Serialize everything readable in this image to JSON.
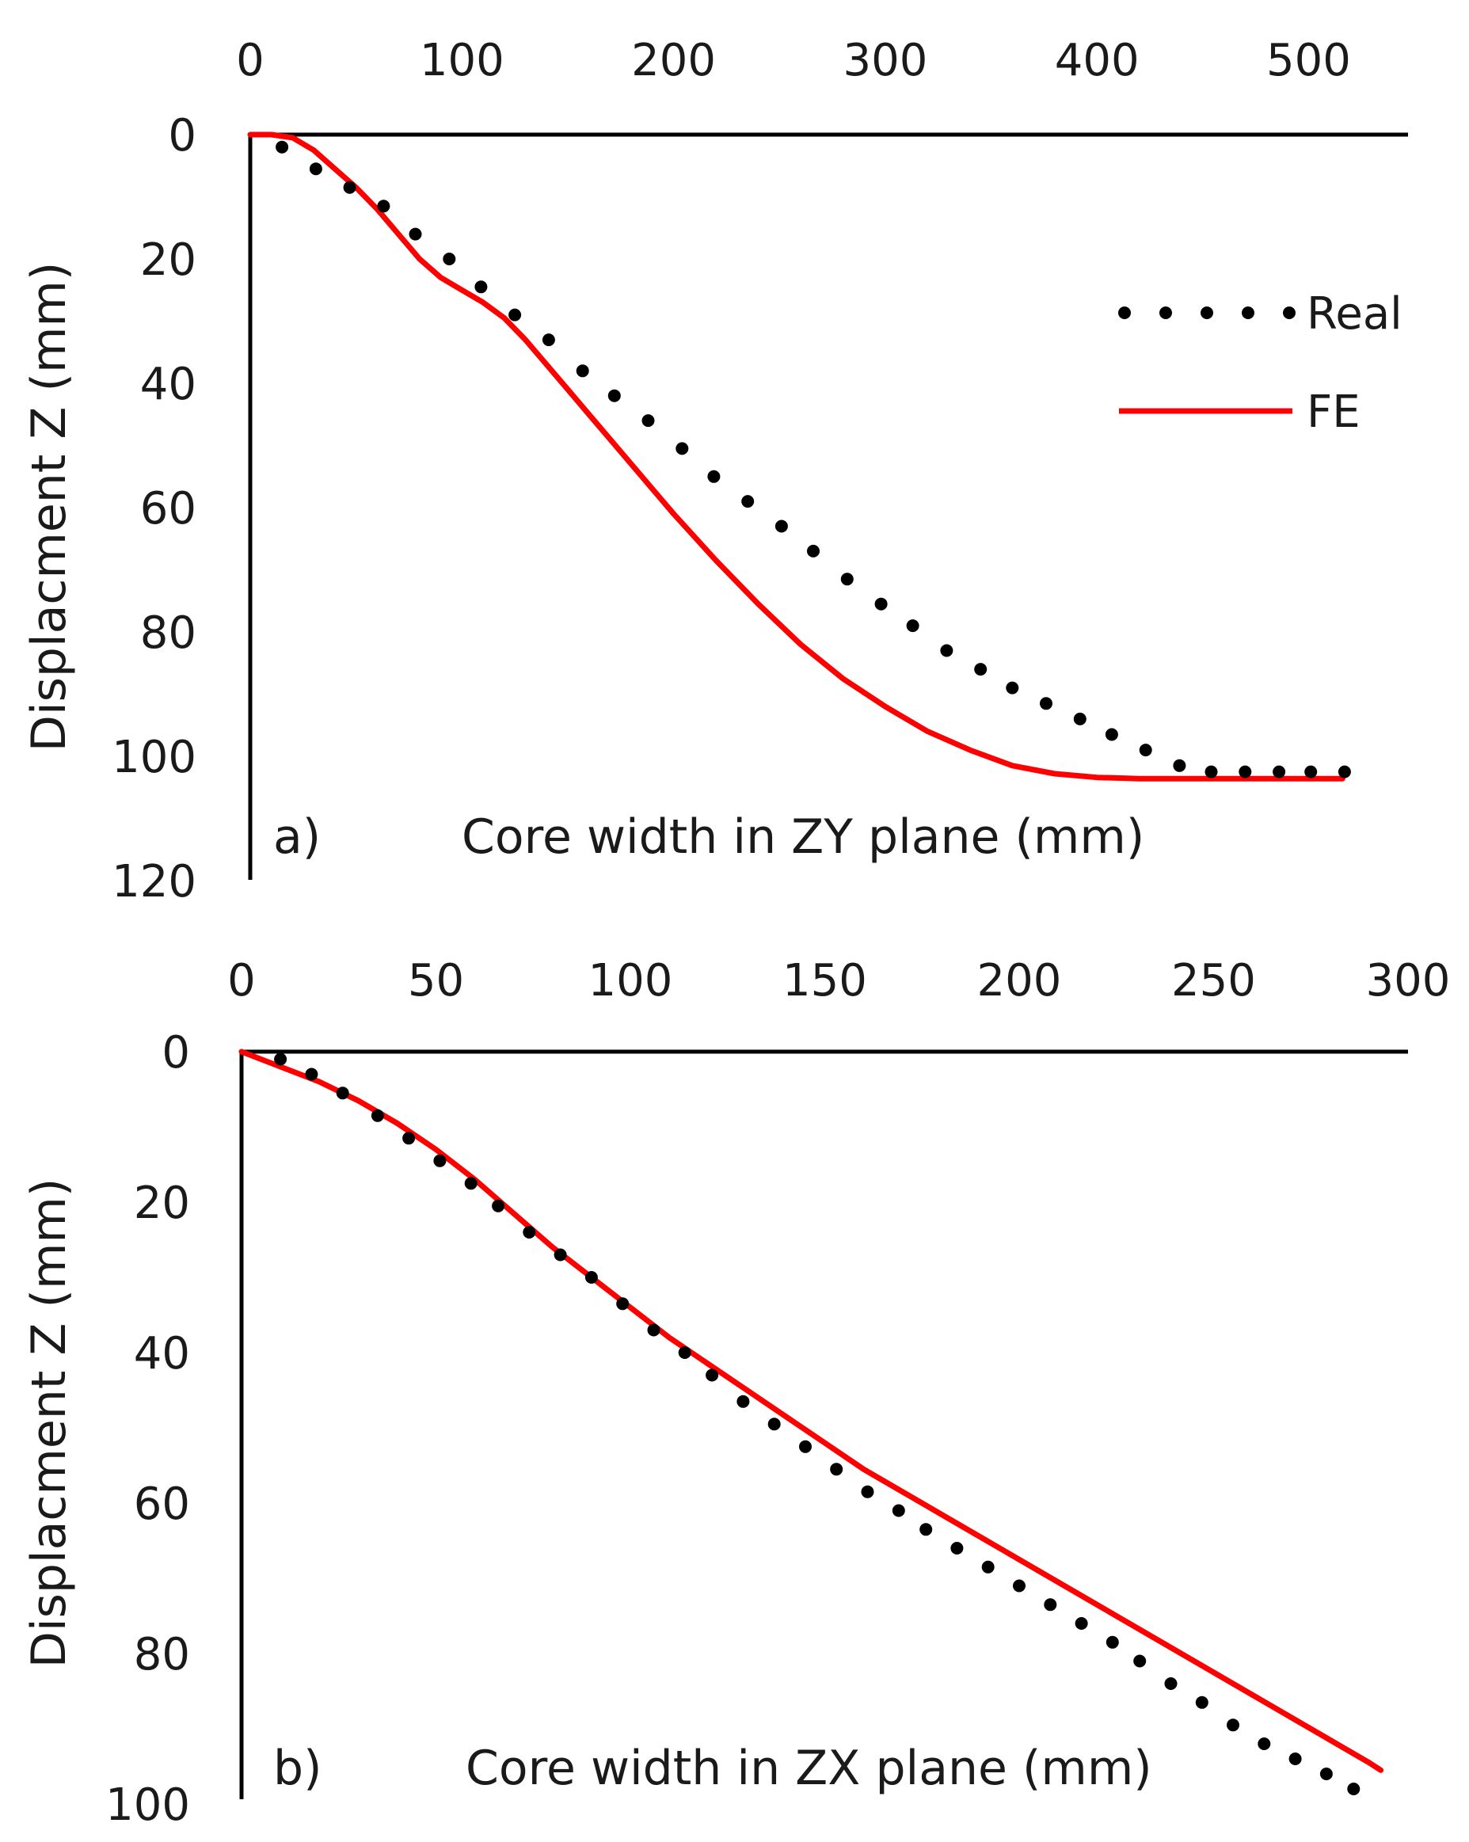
{
  "chart_data": [
    {
      "type": "line",
      "panel_label": "a)",
      "xlabel": "Core width in ZY plane (mm)",
      "ylabel": "Displacment Z (mm)",
      "xlim": [
        0,
        550
      ],
      "ylim": [
        0,
        120
      ],
      "x_ticks": [
        "0",
        "100",
        "200",
        "300",
        "400",
        "500"
      ],
      "y_ticks": [
        "0",
        "20",
        "40",
        "60",
        "80",
        "100",
        "120"
      ],
      "y_inverted": true,
      "x_axis_position": "top",
      "legend": {
        "position": "top-right",
        "entries": [
          "Real",
          "FE"
        ]
      },
      "series": [
        {
          "name": "Real",
          "style": "dotted",
          "color": "#000000",
          "x": [
            15,
            31,
            47,
            63,
            78,
            94,
            109,
            125,
            141,
            157,
            172,
            188,
            204,
            219,
            235,
            251,
            266,
            282,
            298,
            313,
            329,
            345,
            360,
            376,
            392,
            407,
            423,
            439,
            454,
            470,
            486,
            501,
            517
          ],
          "y": [
            2,
            5.5,
            8.5,
            11.5,
            16,
            20,
            24.5,
            29,
            33,
            38,
            42,
            46,
            50.5,
            55,
            59,
            63,
            67,
            71.5,
            75.5,
            79,
            83,
            86,
            89,
            91.5,
            94,
            96.5,
            99,
            101.5,
            102.5,
            102.5,
            102.5,
            102.5,
            102.5
          ]
        },
        {
          "name": "FE",
          "style": "solid",
          "color": "#ff0000",
          "x": [
            0,
            10,
            20,
            30,
            40,
            50,
            60,
            70,
            80,
            90,
            100,
            110,
            120,
            130,
            140,
            150,
            160,
            170,
            180,
            190,
            200,
            220,
            240,
            260,
            280,
            300,
            320,
            340,
            360,
            380,
            400,
            420,
            440,
            460,
            480,
            500,
            516
          ],
          "y": [
            0,
            0,
            0.5,
            2.5,
            5.5,
            8.5,
            12,
            16,
            20,
            23,
            25,
            27,
            29.5,
            33,
            37,
            41,
            45,
            49,
            53,
            57,
            61,
            68.5,
            75.5,
            82,
            87.5,
            92,
            96,
            99,
            101.5,
            102.8,
            103.4,
            103.6,
            103.6,
            103.6,
            103.6,
            103.6,
            103.6
          ]
        }
      ]
    },
    {
      "type": "line",
      "panel_label": "b)",
      "xlabel": "Core width in ZX plane (mm)",
      "ylabel": "Displacment Z (mm)",
      "xlim": [
        0,
        300
      ],
      "ylim": [
        0,
        100
      ],
      "x_ticks": [
        "0",
        "50",
        "100",
        "150",
        "200",
        "250",
        "300"
      ],
      "y_ticks": [
        "0",
        "20",
        "40",
        "60",
        "80",
        "100"
      ],
      "y_inverted": true,
      "x_axis_position": "top",
      "series": [
        {
          "name": "Real",
          "style": "dotted",
          "color": "#000000",
          "x": [
            10,
            18,
            26,
            35,
            43,
            51,
            59,
            66,
            74,
            82,
            90,
            98,
            106,
            114,
            121,
            129,
            137,
            145,
            153,
            161,
            169,
            176,
            184,
            192,
            200,
            208,
            216,
            224,
            231,
            239,
            247,
            255,
            263,
            271,
            279,
            286
          ],
          "y": [
            1,
            3,
            5.5,
            8.5,
            11.5,
            14.5,
            17.5,
            20.5,
            24,
            27,
            30,
            33.5,
            37,
            40,
            43,
            46.5,
            49.5,
            52.5,
            55.5,
            58.5,
            61,
            63.5,
            66,
            68.5,
            71,
            73.5,
            76,
            78.5,
            81,
            84,
            86.5,
            89.5,
            92,
            94,
            96,
            98
          ]
        },
        {
          "name": "FE",
          "style": "solid",
          "color": "#ff0000",
          "x": [
            0,
            10,
            20,
            30,
            40,
            50,
            60,
            70,
            80,
            90,
            100,
            110,
            120,
            130,
            140,
            150,
            160,
            170,
            180,
            190,
            200,
            210,
            220,
            230,
            240,
            250,
            260,
            270,
            280,
            290,
            293
          ],
          "y": [
            0,
            2,
            4,
            6.5,
            9.5,
            13,
            17,
            21.5,
            26,
            30,
            34,
            38,
            41.5,
            45,
            48.5,
            52,
            55.5,
            58.5,
            61.5,
            64.5,
            67.5,
            70.5,
            73.5,
            76.5,
            79.5,
            82.5,
            85.5,
            88.5,
            91.5,
            94.5,
            95.5
          ]
        }
      ]
    }
  ]
}
